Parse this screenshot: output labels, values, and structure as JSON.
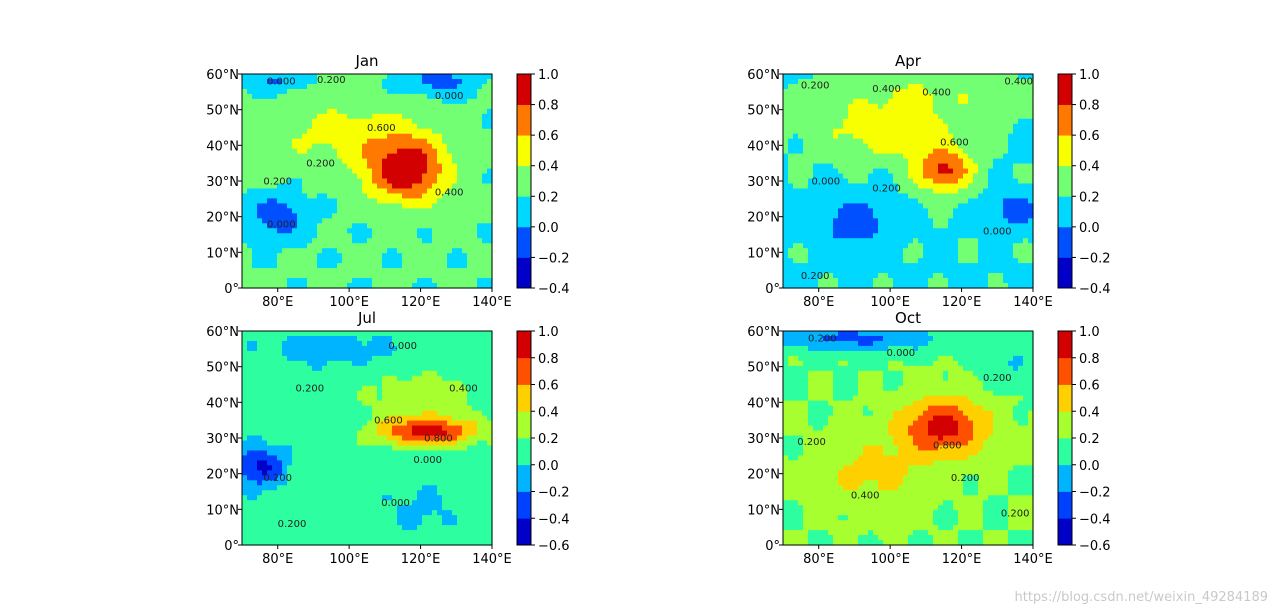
{
  "chart_data": [
    {
      "type": "heatmap",
      "title": "Jan",
      "xticks": [
        "80°E",
        "100°E",
        "120°E",
        "140°E"
      ],
      "xtick_values": [
        80,
        100,
        120,
        140
      ],
      "yticks": [
        "0°",
        "10°N",
        "20°N",
        "30°N",
        "40°N",
        "50°N",
        "60°N"
      ],
      "ytick_values": [
        0,
        10,
        20,
        30,
        40,
        50,
        60
      ],
      "xlim": [
        70,
        140
      ],
      "ylim": [
        0,
        60
      ],
      "colorbar_levels": [
        -0.4,
        -0.2,
        0.0,
        0.2,
        0.4,
        0.6,
        0.8,
        1.0
      ],
      "colorbar_ticks": [
        "1.0",
        "0.8",
        "0.6",
        "0.4",
        "0.2",
        "0.0",
        "−0.2",
        "−0.4"
      ],
      "colors": [
        "#0000c8",
        "#0050ff",
        "#00d8ff",
        "#73ff73",
        "#f8ff00",
        "#ff7800",
        "#d20000"
      ],
      "contour_labels": [
        {
          "text": "0.000",
          "x": 81,
          "y": 57
        },
        {
          "text": "0.200",
          "x": 95,
          "y": 57.5
        },
        {
          "text": "0.000",
          "x": 128,
          "y": 53
        },
        {
          "text": "0.600",
          "x": 109,
          "y": 44
        },
        {
          "text": "0.200",
          "x": 92,
          "y": 34
        },
        {
          "text": "0.200",
          "x": 80,
          "y": 29
        },
        {
          "text": "0.400",
          "x": 128,
          "y": 26
        },
        {
          "text": "0.000",
          "x": 81,
          "y": 17
        }
      ]
    },
    {
      "type": "heatmap",
      "title": "Apr",
      "xticks": [
        "80°E",
        "100°E",
        "120°E",
        "140°E"
      ],
      "xtick_values": [
        80,
        100,
        120,
        140
      ],
      "yticks": [
        "0°",
        "10°N",
        "20°N",
        "30°N",
        "40°N",
        "50°N",
        "60°N"
      ],
      "ytick_values": [
        0,
        10,
        20,
        30,
        40,
        50,
        60
      ],
      "xlim": [
        70,
        140
      ],
      "ylim": [
        0,
        60
      ],
      "colorbar_levels": [
        -0.4,
        -0.2,
        0.0,
        0.2,
        0.4,
        0.6,
        0.8,
        1.0
      ],
      "colorbar_ticks": [
        "1.0",
        "0.8",
        "0.6",
        "0.4",
        "0.2",
        "0.0",
        "−0.2",
        "−0.4"
      ],
      "colors": [
        "#0000c8",
        "#0050ff",
        "#00d8ff",
        "#73ff73",
        "#f8ff00",
        "#ff7800",
        "#d20000"
      ],
      "contour_labels": [
        {
          "text": "0.400",
          "x": 136,
          "y": 57
        },
        {
          "text": "0.200",
          "x": 79,
          "y": 56
        },
        {
          "text": "0.400",
          "x": 99,
          "y": 55
        },
        {
          "text": "0.400",
          "x": 113,
          "y": 54
        },
        {
          "text": "0.600",
          "x": 118,
          "y": 40
        },
        {
          "text": "0.000",
          "x": 82,
          "y": 29
        },
        {
          "text": "0.200",
          "x": 99,
          "y": 27
        },
        {
          "text": "0.000",
          "x": 130,
          "y": 15
        },
        {
          "text": "0.200",
          "x": 79,
          "y": 2.5
        }
      ]
    },
    {
      "type": "heatmap",
      "title": "Jul",
      "xticks": [
        "80°E",
        "100°E",
        "120°E",
        "140°E"
      ],
      "xtick_values": [
        80,
        100,
        120,
        140
      ],
      "yticks": [
        "0°",
        "10°N",
        "20°N",
        "30°N",
        "40°N",
        "50°N",
        "60°N"
      ],
      "ytick_values": [
        0,
        10,
        20,
        30,
        40,
        50,
        60
      ],
      "xlim": [
        70,
        140
      ],
      "ylim": [
        0,
        60
      ],
      "colorbar_levels": [
        -0.6,
        -0.4,
        -0.2,
        0.0,
        0.2,
        0.4,
        0.6,
        0.8,
        1.0
      ],
      "colorbar_ticks": [
        "1.0",
        "0.8",
        "0.6",
        "0.4",
        "0.2",
        "0.0",
        "−0.2",
        "−0.4",
        "−0.6"
      ],
      "colors": [
        "#0000c8",
        "#0040ff",
        "#00b4ff",
        "#2dffa0",
        "#a8ff30",
        "#ffd000",
        "#ff5000",
        "#d20000"
      ],
      "contour_labels": [
        {
          "text": "0.000",
          "x": 115,
          "y": 55
        },
        {
          "text": "0.200",
          "x": 89,
          "y": 43
        },
        {
          "text": "0.400",
          "x": 132,
          "y": 43
        },
        {
          "text": "0.600",
          "x": 111,
          "y": 34
        },
        {
          "text": "0.800",
          "x": 125,
          "y": 29
        },
        {
          "text": "0.000",
          "x": 122,
          "y": 23
        },
        {
          "text": "0.200",
          "x": 80,
          "y": 18
        },
        {
          "text": "0.000",
          "x": 113,
          "y": 11
        },
        {
          "text": "0.200",
          "x": 84,
          "y": 5
        }
      ]
    },
    {
      "type": "heatmap",
      "title": "Oct",
      "xticks": [
        "80°E",
        "100°E",
        "120°E",
        "140°E"
      ],
      "xtick_values": [
        80,
        100,
        120,
        140
      ],
      "yticks": [
        "0°",
        "10°N",
        "20°N",
        "30°N",
        "40°N",
        "50°N",
        "60°N"
      ],
      "ytick_values": [
        0,
        10,
        20,
        30,
        40,
        50,
        60
      ],
      "xlim": [
        70,
        140
      ],
      "ylim": [
        0,
        60
      ],
      "colorbar_levels": [
        -0.6,
        -0.4,
        -0.2,
        0.0,
        0.2,
        0.4,
        0.6,
        0.8,
        1.0
      ],
      "colorbar_ticks": [
        "1.0",
        "0.8",
        "0.6",
        "0.4",
        "0.2",
        "0.0",
        "−0.2",
        "−0.4",
        "−0.6"
      ],
      "colors": [
        "#0000c8",
        "#0040ff",
        "#00b4ff",
        "#2dffa0",
        "#a8ff30",
        "#ffd000",
        "#ff5000",
        "#d20000"
      ],
      "contour_labels": [
        {
          "text": "0.200",
          "x": 81,
          "y": 57
        },
        {
          "text": "0.000",
          "x": 103,
          "y": 53
        },
        {
          "text": "0.200",
          "x": 130,
          "y": 46
        },
        {
          "text": "0.800",
          "x": 116,
          "y": 27
        },
        {
          "text": "0.200",
          "x": 78,
          "y": 28
        },
        {
          "text": "0.400",
          "x": 93,
          "y": 13
        },
        {
          "text": "0.200",
          "x": 121,
          "y": 18
        },
        {
          "text": "0.200",
          "x": 135,
          "y": 8
        }
      ]
    }
  ],
  "watermark": "https://blog.csdn.net/weixin_49284189"
}
